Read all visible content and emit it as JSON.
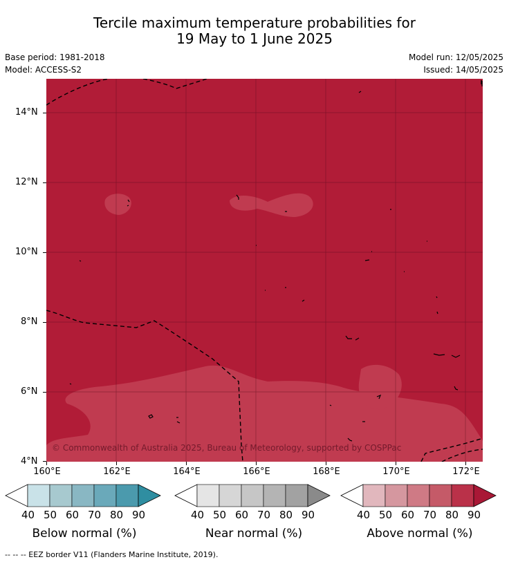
{
  "title_line1": "Tercile maximum temperature probabilities for",
  "title_line2": "19 May to 1 June 2025",
  "meta": {
    "base_period": "Base period: 1981-2018",
    "model": "Model: ACCESS-S2",
    "model_run": "Model run: 12/05/2025",
    "issued": "Issued: 14/05/2025"
  },
  "map": {
    "lon_ticks": [
      "160°E",
      "162°E",
      "164°E",
      "166°E",
      "168°E",
      "170°E",
      "172°E"
    ],
    "lat_ticks": [
      "14°N",
      "12°N",
      "10°N",
      "8°N",
      "6°N",
      "4°N"
    ],
    "copyright": "© Commonwealth of Australia 2025, Bureau of Meteorology, supported by COSPPac",
    "colors": {
      "above_80_90": "#b11c37",
      "above_70_80": "#c03b50"
    }
  },
  "legends": [
    {
      "name": "Below normal (%)",
      "ticks": [
        "40",
        "50",
        "60",
        "70",
        "80",
        "90"
      ],
      "colors": [
        "#c9e2e8",
        "#a7c9cf",
        "#89b7c3",
        "#6aa9ba",
        "#4b9aad",
        "#2f8ea1"
      ]
    },
    {
      "name": "Near normal (%)",
      "ticks": [
        "40",
        "50",
        "60",
        "70",
        "80",
        "90"
      ],
      "colors": [
        "#e5e5e5",
        "#d6d6d6",
        "#c6c6c6",
        "#b4b4b4",
        "#a2a2a2",
        "#8a8a8a"
      ]
    },
    {
      "name": "Above normal (%)",
      "ticks": [
        "40",
        "50",
        "60",
        "70",
        "80",
        "90"
      ],
      "colors": [
        "#e1b7bd",
        "#d5979f",
        "#cf7a85",
        "#c55a68",
        "#ba3149",
        "#a91836"
      ]
    }
  ],
  "footer": "-- -- -- EEZ border V11 (Flanders Marine Institute, 2019)."
}
